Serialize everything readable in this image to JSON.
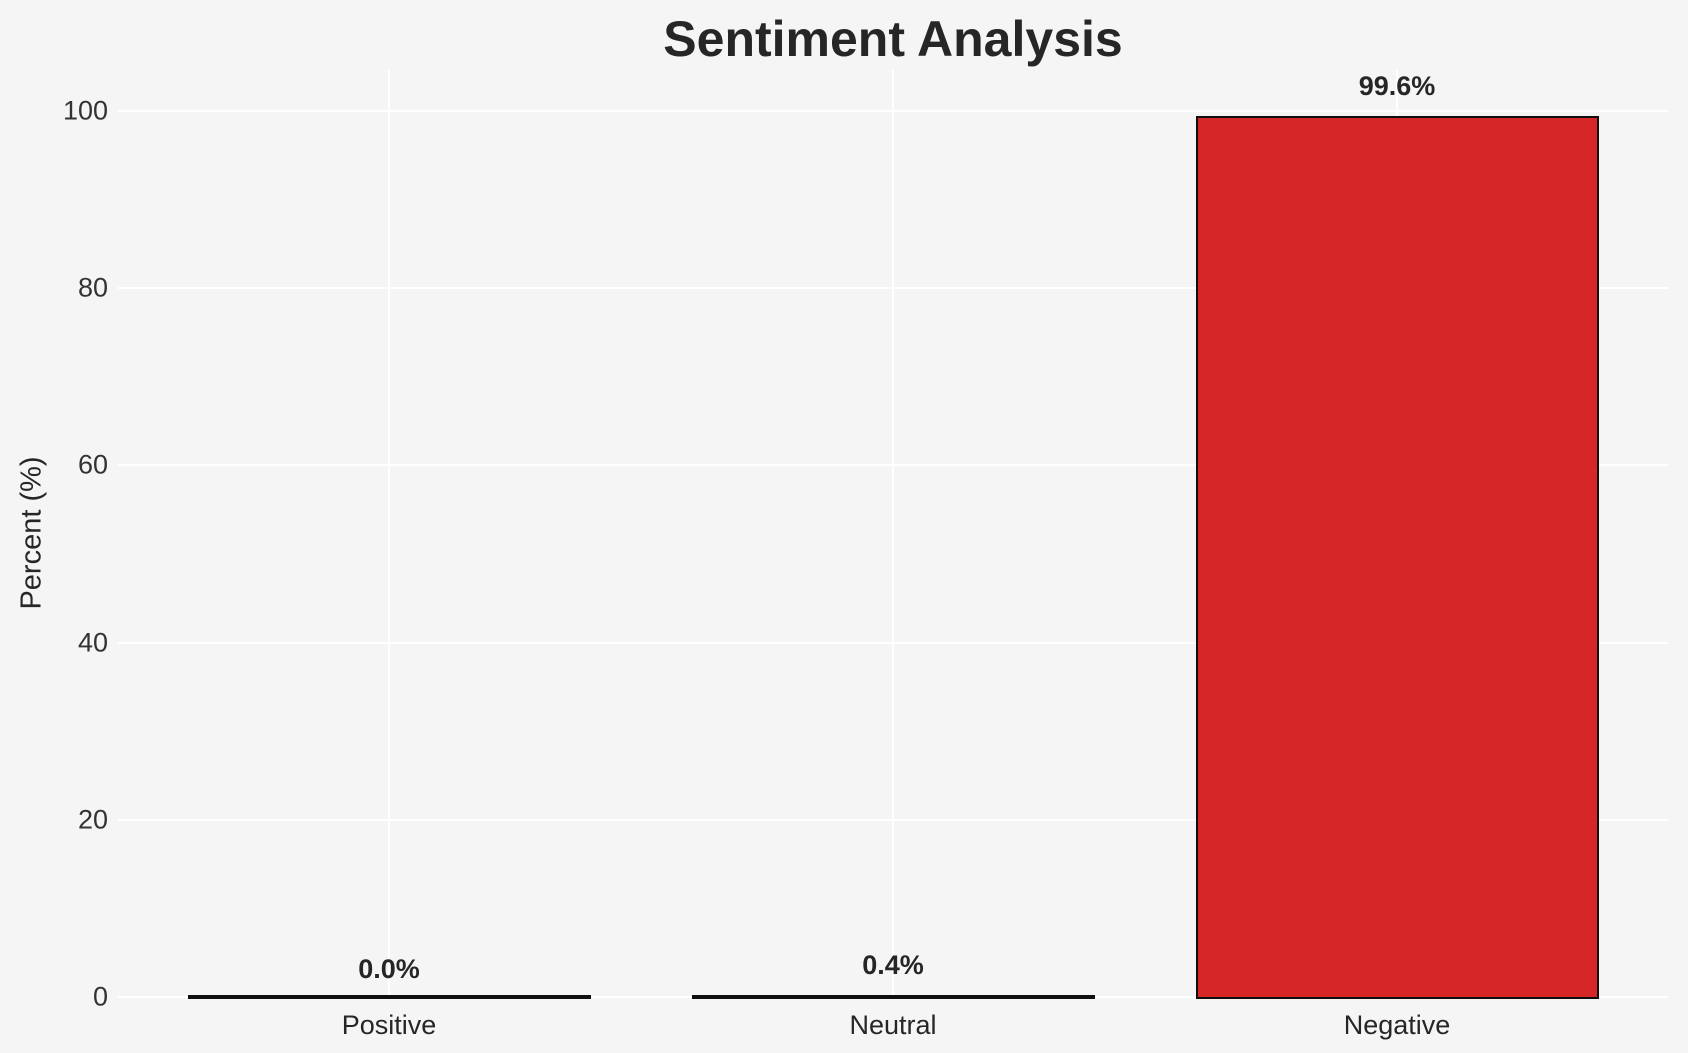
{
  "chart_data": {
    "type": "bar",
    "title": "Sentiment Analysis",
    "categories": [
      "Positive",
      "Neutral",
      "Negative"
    ],
    "values": [
      0.0,
      0.4,
      99.6
    ],
    "value_labels": [
      "0.0%",
      "0.4%",
      "99.6%"
    ],
    "xlabel": "",
    "ylabel": "Percent (%)",
    "ylim": [
      0,
      104.6
    ],
    "yticks": [
      0,
      20,
      40,
      60,
      80,
      100
    ],
    "grid": "on",
    "legend_position": "none",
    "colors": {
      "background": "#f5f5f5",
      "gridline": "#ffffff",
      "text": "#262626",
      "tick_text": "#333333",
      "bar_fills": [
        "#f5f5f5",
        "#1a1a1a",
        "#d62728"
      ],
      "bar_edge": "#0f0f0f"
    }
  }
}
